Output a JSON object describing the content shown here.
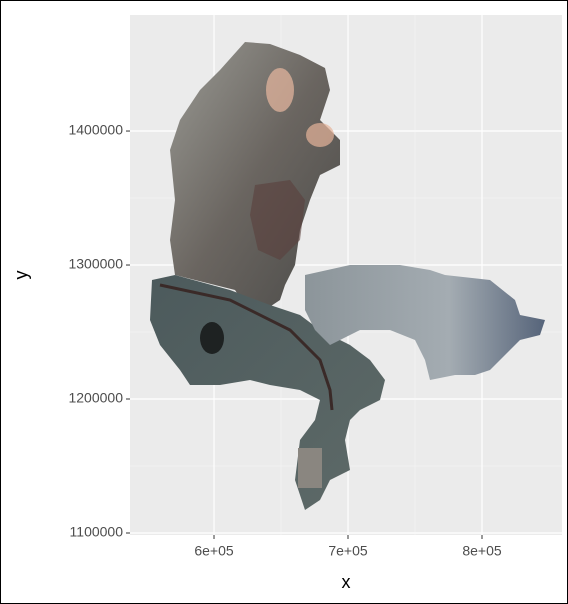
{
  "chart_data": {
    "type": "raster",
    "xlabel": "x",
    "ylabel": "y",
    "xlim": [
      537300,
      859700
    ],
    "ylim": [
      1098500,
      1486600
    ],
    "xticks": [
      {
        "value": 600000,
        "label": "6e+05"
      },
      {
        "value": 700000,
        "label": "7e+05"
      },
      {
        "value": 800000,
        "label": "8e+05"
      }
    ],
    "yticks": [
      1100000,
      1200000,
      1300000,
      1400000
    ],
    "grid": true
  }
}
